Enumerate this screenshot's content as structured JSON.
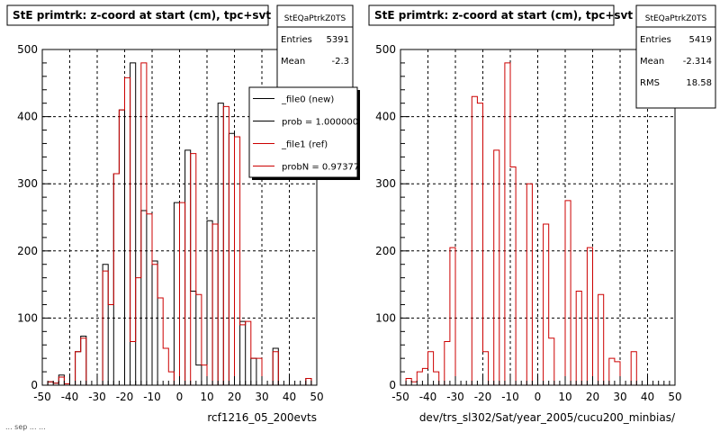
{
  "footer": {
    "left_text": "... sep ... ..."
  },
  "chart_data": [
    {
      "type": "bar",
      "title": "StE primtrk: z-coord at start (cm), tpc+svt",
      "xlabel": "rcf1216_05_200evts",
      "ylabel": "",
      "xlim": [
        -50,
        50
      ],
      "ylim": [
        0,
        500
      ],
      "grid": true,
      "bin_width": 2,
      "x_ticks": [
        -50,
        -40,
        -30,
        -20,
        -10,
        0,
        10,
        20,
        30,
        40,
        50
      ],
      "y_ticks": [
        0,
        100,
        200,
        300,
        400,
        500
      ],
      "stats": {
        "name": "StEQaPtrkZ0TS",
        "rows": [
          {
            "label": "Entries",
            "value": "5391"
          },
          {
            "label": "Mean",
            "value": "-2.3"
          }
        ]
      },
      "legend": {
        "position": "top-right",
        "entries": [
          {
            "label": "_file0 (new)",
            "color": "#000000"
          },
          {
            "label": "prob = 1.000000",
            "color": "#000000"
          },
          {
            "label": "_file1 (ref)",
            "color": "#cc0000"
          },
          {
            "label": "probN = 0.97377",
            "color": "#cc0000"
          }
        ]
      },
      "series": [
        {
          "name": "_file0 (new)",
          "color": "#000000",
          "values": [
            0,
            5,
            3,
            15,
            2,
            0,
            50,
            73,
            0,
            0,
            0,
            180,
            0,
            315,
            410,
            0,
            480,
            0,
            260,
            0,
            185,
            0,
            0,
            0,
            272,
            0,
            350,
            140,
            30,
            0,
            245,
            0,
            420,
            0,
            375,
            0,
            95,
            0,
            40,
            0,
            0,
            0,
            55,
            0,
            0,
            0,
            0,
            0,
            10,
            0
          ]
        },
        {
          "name": "_file1 (ref)",
          "color": "#cc0000",
          "values": [
            0,
            5,
            3,
            12,
            2,
            0,
            50,
            70,
            0,
            0,
            0,
            170,
            120,
            315,
            410,
            458,
            65,
            160,
            480,
            255,
            180,
            130,
            55,
            20,
            0,
            272,
            0,
            345,
            135,
            30,
            0,
            240,
            0,
            415,
            0,
            370,
            90,
            95,
            40,
            40,
            0,
            0,
            50,
            0,
            0,
            0,
            0,
            0,
            10,
            0
          ]
        }
      ]
    },
    {
      "type": "bar",
      "title": "StE primtrk: z-coord at start (cm), tpc+svt",
      "xlabel": "dev/trs_sl302/Sat/year_2005/cucu200_minbias/",
      "ylabel": "",
      "xlim": [
        -50,
        50
      ],
      "ylim": [
        0,
        500
      ],
      "grid": true,
      "bin_width": 2,
      "x_ticks": [
        -50,
        -40,
        -30,
        -20,
        -10,
        0,
        10,
        20,
        30,
        40,
        50
      ],
      "y_ticks": [
        0,
        100,
        200,
        300,
        400,
        500
      ],
      "stats": {
        "name": "StEQaPtrkZ0TS",
        "rows": [
          {
            "label": "Entries",
            "value": "5419"
          },
          {
            "label": "Mean",
            "value": "-2.314"
          },
          {
            "label": "RMS",
            "value": "18.58"
          }
        ]
      },
      "series": [
        {
          "name": "",
          "color": "#cc0000",
          "values": [
            0,
            10,
            5,
            20,
            25,
            50,
            20,
            0,
            65,
            205,
            0,
            0,
            0,
            430,
            420,
            50,
            0,
            350,
            0,
            480,
            325,
            0,
            0,
            300,
            0,
            0,
            240,
            70,
            0,
            0,
            275,
            0,
            140,
            0,
            205,
            0,
            135,
            0,
            40,
            35,
            0,
            0,
            50,
            0,
            0,
            0,
            0,
            0,
            0,
            0
          ]
        }
      ]
    }
  ]
}
